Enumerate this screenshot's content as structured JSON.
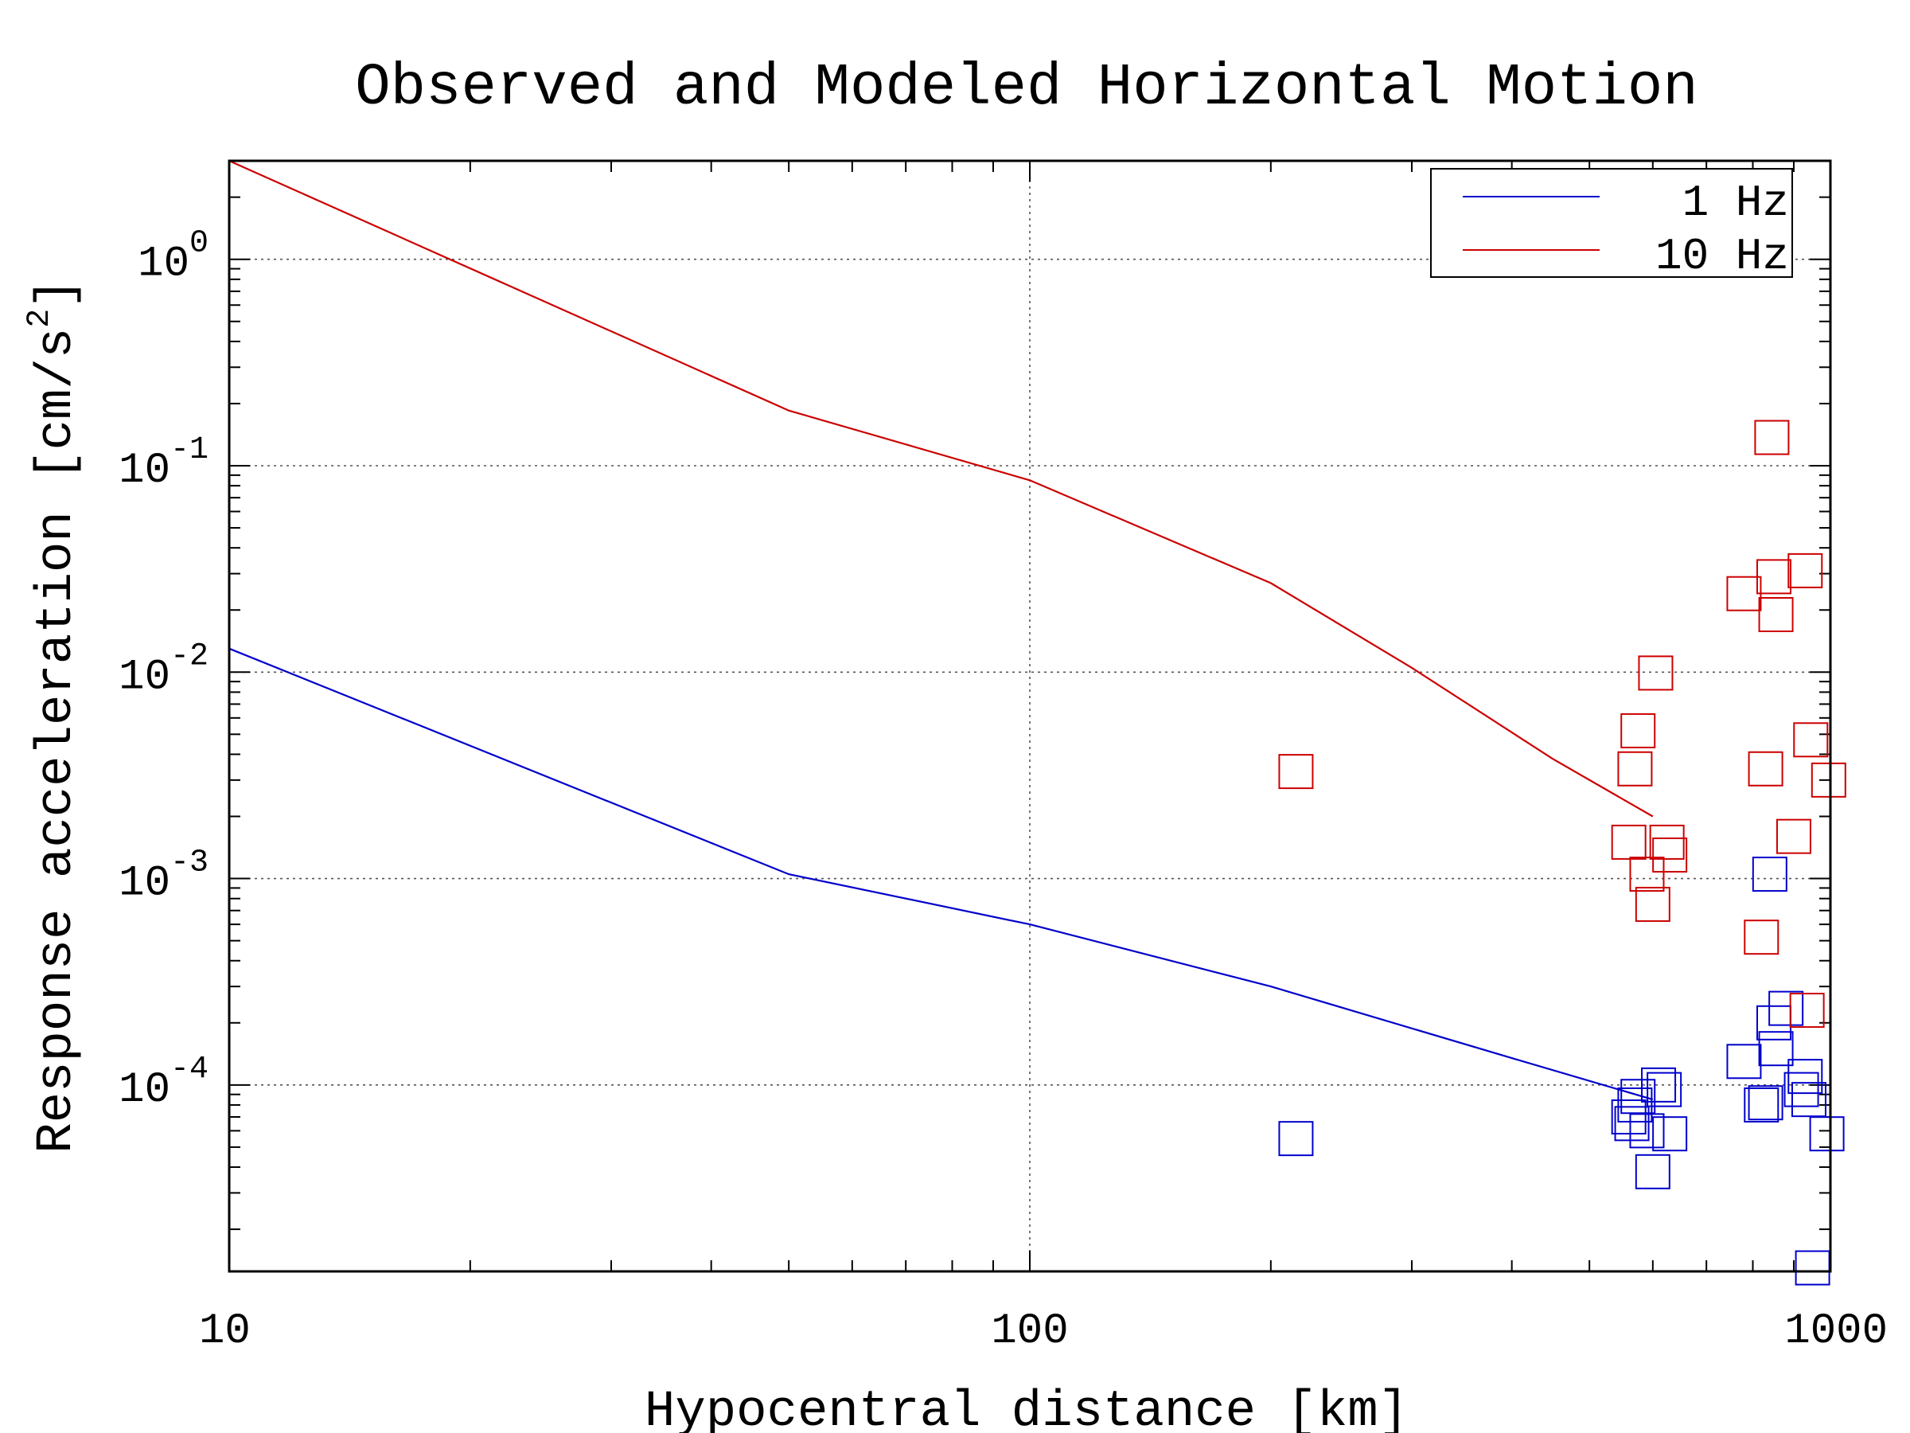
{
  "chart_data": {
    "type": "scatter",
    "title": "Observed and Modeled Horizontal Motion",
    "xlabel": "Hypocentral distance [km]",
    "ylabel": "Response acceleration [cm/s",
    "ylabel_sup": "2",
    "ylabel_end": "]",
    "x_scale": "log",
    "y_scale": "log",
    "xlim": [
      10,
      1000
    ],
    "ylim": [
      1.25e-05,
      3.0
    ],
    "grid": true,
    "legend_position": "top-right",
    "x_ticks": [
      {
        "value": 10,
        "label": "10"
      },
      {
        "value": 100,
        "label": "100"
      },
      {
        "value": 1000,
        "label": "1000"
      }
    ],
    "y_ticks": [
      {
        "value": 1,
        "base": "10",
        "exp": "0"
      },
      {
        "value": 0.1,
        "base": "10",
        "exp": "-1"
      },
      {
        "value": 0.01,
        "base": "10",
        "exp": "-2"
      },
      {
        "value": 0.001,
        "base": "10",
        "exp": "-3"
      },
      {
        "value": 0.0001,
        "base": "10",
        "exp": "-4"
      }
    ],
    "series": [
      {
        "name": "1 Hz",
        "color": "#0000cc",
        "model_line": [
          [
            10,
            0.013
          ],
          [
            50,
            0.00105
          ],
          [
            100,
            0.0006
          ],
          [
            200,
            0.0003
          ],
          [
            400,
            0.000135
          ],
          [
            600,
            8.5e-05
          ]
        ],
        "observed": [
          [
            215,
            5.5e-05
          ],
          [
            560,
            7e-05
          ],
          [
            565,
            6.5e-05
          ],
          [
            570,
            8e-05
          ],
          [
            575,
            8.8e-05
          ],
          [
            590,
            6e-05
          ],
          [
            600,
            3.8e-05
          ],
          [
            610,
            0.0001
          ],
          [
            620,
            9.5e-05
          ],
          [
            630,
            5.8e-05
          ],
          [
            780,
            0.00013
          ],
          [
            820,
            8e-05
          ],
          [
            830,
            8.2e-05
          ],
          [
            840,
            0.00105
          ],
          [
            850,
            0.0002
          ],
          [
            855,
            0.00015
          ],
          [
            880,
            0.000235
          ],
          [
            920,
            9.5e-05
          ],
          [
            930,
            0.00011
          ],
          [
            940,
            8.5e-05
          ],
          [
            950,
            1.3e-05
          ],
          [
            990,
            5.8e-05
          ]
        ]
      },
      {
        "name": "10 Hz",
        "color": "#cc0000",
        "model_line": [
          [
            10,
            3.0
          ],
          [
            50,
            0.185
          ],
          [
            100,
            0.085
          ],
          [
            200,
            0.027
          ],
          [
            300,
            0.0105
          ],
          [
            450,
            0.0038
          ],
          [
            600,
            0.002
          ]
        ],
        "observed": [
          [
            215,
            0.0033
          ],
          [
            560,
            0.0015
          ],
          [
            570,
            0.0034
          ],
          [
            575,
            0.0052
          ],
          [
            590,
            0.00105
          ],
          [
            600,
            0.00075
          ],
          [
            605,
            0.0099
          ],
          [
            625,
            0.0015
          ],
          [
            630,
            0.0013
          ],
          [
            780,
            0.024
          ],
          [
            820,
            0.00052
          ],
          [
            830,
            0.0034
          ],
          [
            845,
            0.137
          ],
          [
            850,
            0.029
          ],
          [
            855,
            0.019
          ],
          [
            900,
            0.0016
          ],
          [
            930,
            0.031
          ],
          [
            935,
            0.00023
          ],
          [
            945,
            0.0047
          ],
          [
            995,
            0.003
          ]
        ]
      }
    ]
  }
}
